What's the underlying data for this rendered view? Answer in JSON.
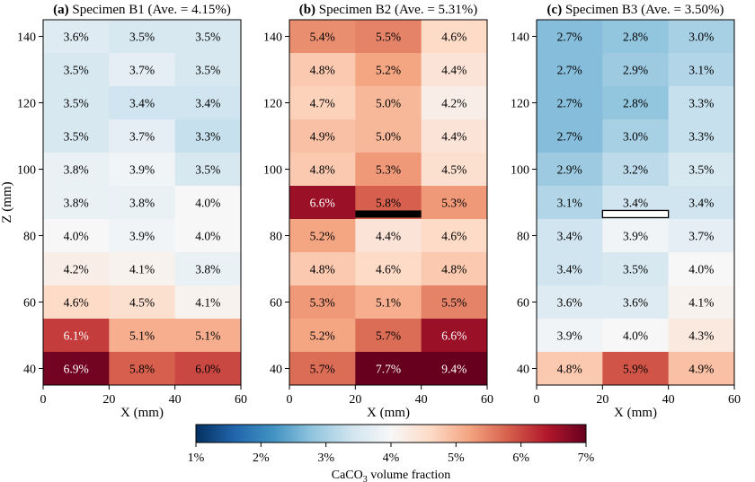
{
  "chart_data": {
    "type": "heatmap",
    "panels": [
      {
        "label": "(a)",
        "title": "Specimen B1 (Ave. = 4.15%)",
        "xlabel": "X (mm)",
        "ylabel": "Z (mm)",
        "x_edges": [
          0,
          20,
          40,
          60
        ],
        "z_edges": [
          35,
          45,
          55,
          65,
          75,
          85,
          95,
          105,
          115,
          125,
          135,
          145
        ],
        "marker": null,
        "rows_top_to_bottom": [
          [
            3.6,
            3.5,
            3.5
          ],
          [
            3.5,
            3.7,
            3.5
          ],
          [
            3.5,
            3.4,
            3.4
          ],
          [
            3.5,
            3.7,
            3.3
          ],
          [
            3.8,
            3.9,
            3.5
          ],
          [
            3.8,
            3.8,
            4.0
          ],
          [
            4.0,
            3.9,
            4.0
          ],
          [
            4.2,
            4.1,
            3.8
          ],
          [
            4.6,
            4.5,
            4.1
          ],
          [
            6.1,
            5.1,
            5.1
          ],
          [
            6.9,
            5.8,
            6.0
          ]
        ]
      },
      {
        "label": "(b)",
        "title": "Specimen B2 (Ave. = 5.31%)",
        "xlabel": "X (mm)",
        "ylabel": "",
        "x_edges": [
          0,
          20,
          40,
          60
        ],
        "z_edges": [
          35,
          45,
          55,
          65,
          75,
          85,
          95,
          105,
          115,
          125,
          135,
          145
        ],
        "marker": {
          "style": "filled",
          "x_range": [
            20,
            40
          ],
          "z": 86.5,
          "color": "#000000"
        },
        "rows_top_to_bottom": [
          [
            5.4,
            5.5,
            4.6
          ],
          [
            4.8,
            5.2,
            4.4
          ],
          [
            4.7,
            5.0,
            4.2
          ],
          [
            4.9,
            5.0,
            4.4
          ],
          [
            4.8,
            5.3,
            4.5
          ],
          [
            6.6,
            5.8,
            5.3
          ],
          [
            5.2,
            4.4,
            4.6
          ],
          [
            4.8,
            4.6,
            4.8
          ],
          [
            5.3,
            5.1,
            5.5
          ],
          [
            5.2,
            5.7,
            6.6
          ],
          [
            5.7,
            7.7,
            9.4
          ]
        ]
      },
      {
        "label": "(c)",
        "title": "Specimen B3 (Ave. = 3.50%)",
        "xlabel": "X (mm)",
        "ylabel": "",
        "x_edges": [
          0,
          20,
          40,
          60
        ],
        "z_edges": [
          35,
          45,
          55,
          65,
          75,
          85,
          95,
          105,
          115,
          125,
          135,
          145
        ],
        "marker": {
          "style": "outline",
          "x_range": [
            20,
            40
          ],
          "z": 86.5,
          "color": "#ffffff"
        },
        "rows_top_to_bottom": [
          [
            2.7,
            2.8,
            3.0
          ],
          [
            2.7,
            2.9,
            3.1
          ],
          [
            2.7,
            2.8,
            3.3
          ],
          [
            2.7,
            3.0,
            3.3
          ],
          [
            2.9,
            3.2,
            3.5
          ],
          [
            3.1,
            3.4,
            3.4
          ],
          [
            3.4,
            3.9,
            3.7
          ],
          [
            3.4,
            3.5,
            4.0
          ],
          [
            3.6,
            3.6,
            4.1
          ],
          [
            3.9,
            4.0,
            4.3
          ],
          [
            4.8,
            5.9,
            4.9
          ]
        ]
      }
    ],
    "xlim": [
      0,
      60
    ],
    "zlim": [
      35,
      145
    ],
    "x_ticks": [
      0,
      20,
      40,
      60
    ],
    "z_ticks": [
      40,
      60,
      80,
      100,
      120,
      140
    ],
    "value_suffix": "%",
    "colorbar": {
      "label_prefix": "CaCO",
      "label_subscript": "3",
      "label_suffix": " volume fraction",
      "min": 1,
      "max": 7,
      "ticks": [
        1,
        2,
        3,
        4,
        5,
        6,
        7
      ],
      "tick_suffix": "%",
      "colormap": "RdBu_r",
      "stops": [
        "#053061",
        "#2166ac",
        "#4393c3",
        "#92c5de",
        "#d1e5f0",
        "#f7f7f7",
        "#fddbc7",
        "#f4a582",
        "#d6604d",
        "#b2182b",
        "#67001f"
      ],
      "orientation": "horizontal",
      "placement": "bottom-center"
    }
  }
}
